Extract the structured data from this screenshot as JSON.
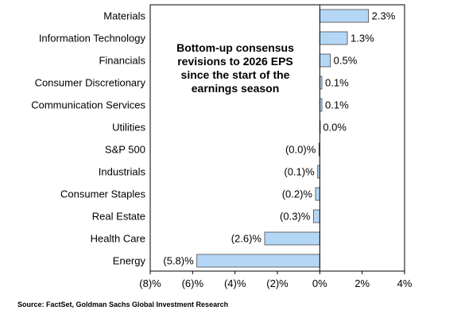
{
  "chart_data": {
    "type": "bar",
    "orientation": "horizontal",
    "title_lines": [
      "Bottom-up consensus",
      "revisions to 2026 EPS",
      "since the start of the",
      "earnings season"
    ],
    "categories": [
      "Materials",
      "Information Technology",
      "Financials",
      "Consumer Discretionary",
      "Communication Services",
      "Utilities",
      "S&P 500",
      "Industrials",
      "Consumer Staples",
      "Real Estate",
      "Health Care",
      "Energy"
    ],
    "values": [
      2.3,
      1.3,
      0.5,
      0.1,
      0.1,
      0.0,
      -0.04,
      -0.1,
      -0.2,
      -0.3,
      -2.6,
      -5.8
    ],
    "value_labels": [
      "2.3%",
      "1.3%",
      "0.5%",
      "0.1%",
      "0.1%",
      "0.0%",
      "(0.0)%",
      "(0.1)%",
      "(0.2)%",
      "(0.3)%",
      "(2.6)%",
      "(5.8)%"
    ],
    "xlim": [
      -8,
      4
    ],
    "x_ticks": [
      -8,
      -6,
      -4,
      -2,
      0,
      2,
      4
    ],
    "x_tick_labels": [
      "(8)%",
      "(6)%",
      "(4)%",
      "(2)%",
      "0%",
      "2%",
      "4%"
    ],
    "bar_color": "#b4d7f5",
    "bar_edge_color": "#4a4a4a",
    "grid": false,
    "legend": "none",
    "source": "Source: FactSet, Goldman Sachs Global Investment Research"
  }
}
